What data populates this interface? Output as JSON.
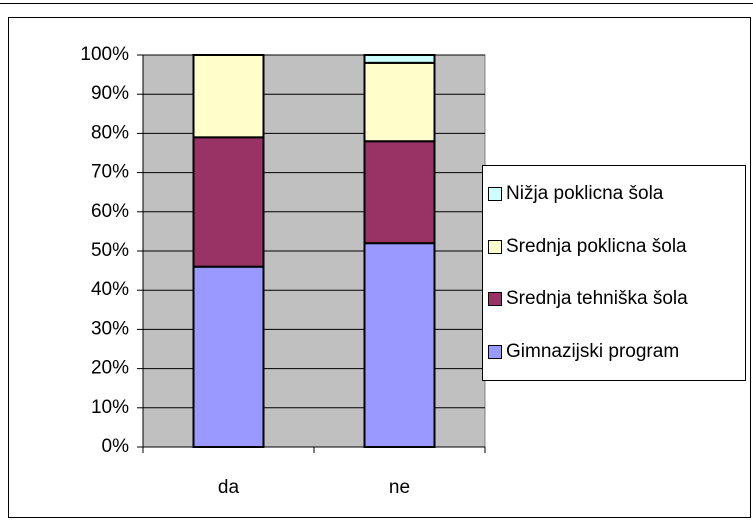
{
  "chart_data": {
    "type": "stacked_bar_100",
    "categories": [
      "da",
      "ne"
    ],
    "series": [
      {
        "name": "Gimnazijski program",
        "color": "#9999ff",
        "values": [
          46,
          52
        ]
      },
      {
        "name": "Srednja tehniška šola",
        "color": "#993366",
        "values": [
          33,
          26
        ]
      },
      {
        "name": "Srednja poklicna šola",
        "color": "#ffffcc",
        "values": [
          21,
          20
        ]
      },
      {
        "name": "Nižja poklicna šola",
        "color": "#ccffff",
        "values": [
          0,
          2
        ]
      }
    ],
    "ylim": [
      0,
      100
    ],
    "yticks": [
      {
        "value": 0,
        "label": "0%"
      },
      {
        "value": 10,
        "label": "10%"
      },
      {
        "value": 20,
        "label": "20%"
      },
      {
        "value": 30,
        "label": "30%"
      },
      {
        "value": 40,
        "label": "40%"
      },
      {
        "value": 50,
        "label": "50%"
      },
      {
        "value": 60,
        "label": "60%"
      },
      {
        "value": 70,
        "label": "70%"
      },
      {
        "value": 80,
        "label": "80%"
      },
      {
        "value": 90,
        "label": "90%"
      },
      {
        "value": 100,
        "label": "100%"
      }
    ],
    "grid": true,
    "plot_background": "#c0c0c0",
    "legend": "right"
  }
}
